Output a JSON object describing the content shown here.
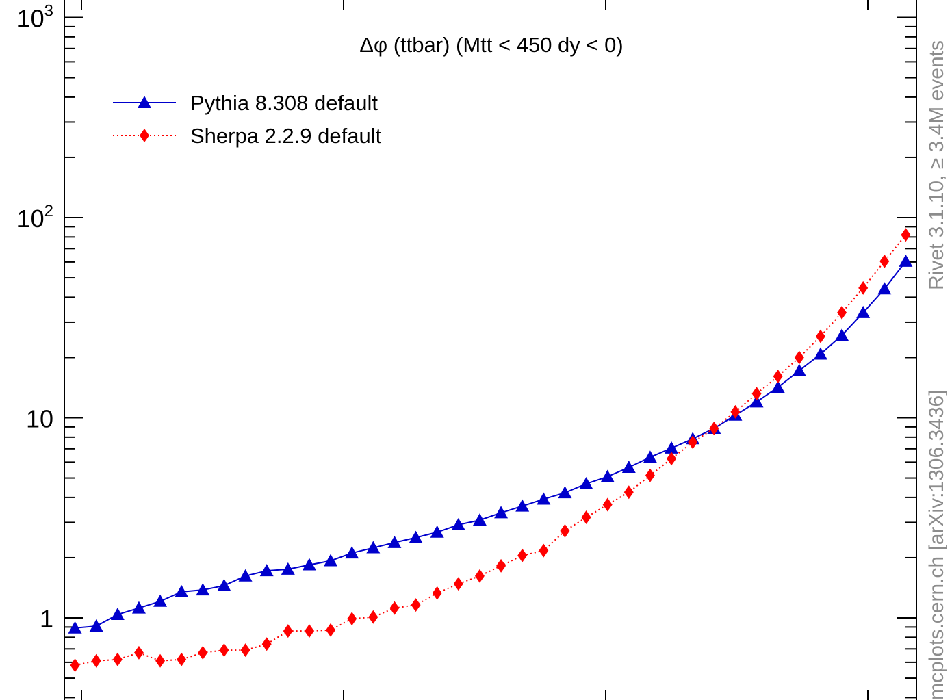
{
  "chart_data": {
    "type": "line",
    "title": "Δφ (ttbar) (Mtt < 450 dy < 0)",
    "y_scale": "log",
    "ylim": [
      0.4,
      1000
    ],
    "xlim": [
      0,
      40
    ],
    "ytick_labels": [
      {
        "value": 1,
        "text": "1"
      },
      {
        "value": 10,
        "text": "10"
      },
      {
        "value": 100,
        "base": "10",
        "exp": "2"
      },
      {
        "value": 1000,
        "base": "10",
        "exp": "3"
      }
    ],
    "legend_position": "top-left",
    "grid": false,
    "x": [
      0.5,
      1.5,
      2.5,
      3.5,
      4.5,
      5.5,
      6.5,
      7.5,
      8.5,
      9.5,
      10.5,
      11.5,
      12.5,
      13.5,
      14.5,
      15.5,
      16.5,
      17.5,
      18.5,
      19.5,
      20.5,
      21.5,
      22.5,
      23.5,
      24.5,
      25.5,
      26.5,
      27.5,
      28.5,
      29.5,
      30.5,
      31.5,
      32.5,
      33.5,
      34.5,
      35.5,
      36.5,
      37.5,
      38.5,
      39.5
    ],
    "series": [
      {
        "name": "Pythia 8.308 default",
        "color": "#0000cc",
        "line_style": "solid",
        "marker": "triangle",
        "values": [
          0.89,
          0.91,
          1.04,
          1.12,
          1.21,
          1.35,
          1.38,
          1.45,
          1.62,
          1.72,
          1.75,
          1.84,
          1.93,
          2.11,
          2.24,
          2.38,
          2.52,
          2.68,
          2.92,
          3.08,
          3.35,
          3.62,
          3.92,
          4.22,
          4.68,
          5.08,
          5.65,
          6.35,
          7.05,
          7.85,
          8.85,
          10.3,
          12.0,
          14.2,
          17.2,
          20.8,
          25.8,
          33.5,
          44.0,
          60.5
        ]
      },
      {
        "name": "Sherpa 2.2.9 default",
        "color": "#ff0000",
        "line_style": "dotted",
        "marker": "diamond",
        "values": [
          0.58,
          0.61,
          0.62,
          0.67,
          0.61,
          0.62,
          0.67,
          0.69,
          0.69,
          0.74,
          0.86,
          0.86,
          0.87,
          0.99,
          1.01,
          1.12,
          1.16,
          1.33,
          1.48,
          1.62,
          1.82,
          2.05,
          2.17,
          2.72,
          3.18,
          3.68,
          4.25,
          5.15,
          6.25,
          7.55,
          8.85,
          10.7,
          13.2,
          16.1,
          20.0,
          25.5,
          33.5,
          44.5,
          60.5,
          82.0
        ]
      }
    ]
  },
  "side_labels": {
    "rivet": "Rivet 3.1.10, ≥ 3.4M events",
    "url": "mcplots.cern.ch [arXiv:1306.3436]"
  }
}
